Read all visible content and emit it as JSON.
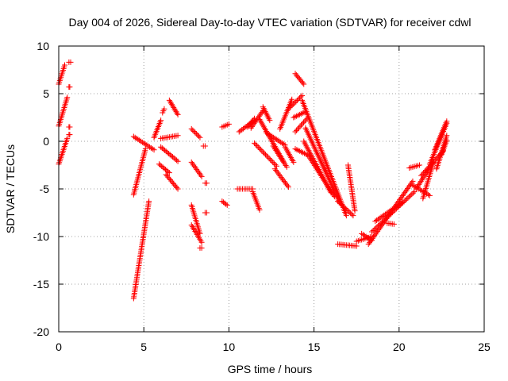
{
  "colors": {
    "series": "#ff0000",
    "grid": "#a0a0a0",
    "frame": "#000000"
  },
  "chart_data": {
    "type": "scatter",
    "title": "Day 004 of 2026, Sidereal Day-to-day VTEC variation (SDTVAR) for receiver cdwl",
    "xlabel": "GPS time / hours",
    "ylabel": "SDTVAR / TECUs",
    "xlim": [
      0,
      25
    ],
    "ylim": [
      -20,
      10
    ],
    "xticks": [
      0,
      5,
      10,
      15,
      20,
      25
    ],
    "yticks": [
      -20,
      -15,
      -10,
      -5,
      0,
      5,
      10
    ],
    "grid": true,
    "marker": "plus",
    "series": [
      {
        "name": "SDTVAR",
        "segments": [
          {
            "x0": 0.0,
            "x1": 0.35,
            "y0": 6.0,
            "y1": 8.0
          },
          {
            "x0": 0.6,
            "x1": 0.7,
            "y0": 8.3,
            "y1": 8.3
          },
          {
            "x0": 0.0,
            "x1": 0.5,
            "y0": 1.6,
            "y1": 4.6
          },
          {
            "x0": 0.0,
            "x1": 0.5,
            "y0": -2.4,
            "y1": 0.3
          },
          {
            "x0": 0.6,
            "x1": 0.65,
            "y0": 5.7,
            "y1": 5.7
          },
          {
            "x0": 0.6,
            "x1": 0.65,
            "y0": 1.5,
            "y1": 1.5
          },
          {
            "x0": 0.6,
            "x1": 0.65,
            "y0": 0.7,
            "y1": 0.7
          },
          {
            "x0": 4.4,
            "x1": 5.3,
            "y0": -16.5,
            "y1": -6.3
          },
          {
            "x0": 4.4,
            "x1": 5.1,
            "y0": -5.6,
            "y1": -0.8
          },
          {
            "x0": 4.4,
            "x1": 5.6,
            "y0": 0.5,
            "y1": -0.9
          },
          {
            "x0": 5.6,
            "x1": 6.0,
            "y0": 0.4,
            "y1": 2.2
          },
          {
            "x0": 6.1,
            "x1": 6.2,
            "y0": 3.0,
            "y1": 3.4
          },
          {
            "x0": 5.9,
            "x1": 6.5,
            "y0": -2.4,
            "y1": -3.3
          },
          {
            "x0": 6.3,
            "x1": 7.0,
            "y0": -3.5,
            "y1": -5.0
          },
          {
            "x0": 6.0,
            "x1": 7.0,
            "y0": -0.6,
            "y1": -2.1
          },
          {
            "x0": 6.5,
            "x1": 7.0,
            "y0": 4.3,
            "y1": 2.8
          },
          {
            "x0": 6.0,
            "x1": 7.0,
            "y0": 0.3,
            "y1": 0.6
          },
          {
            "x0": 7.8,
            "x1": 8.3,
            "y0": 1.3,
            "y1": 0.4
          },
          {
            "x0": 7.8,
            "x1": 8.4,
            "y0": -2.2,
            "y1": -3.7
          },
          {
            "x0": 8.6,
            "x1": 8.7,
            "y0": -4.4,
            "y1": -4.4
          },
          {
            "x0": 8.5,
            "x1": 8.6,
            "y0": -0.5,
            "y1": -0.5
          },
          {
            "x0": 7.8,
            "x1": 8.3,
            "y0": -6.7,
            "y1": -9.7
          },
          {
            "x0": 7.8,
            "x1": 8.4,
            "y0": -8.8,
            "y1": -10.6
          },
          {
            "x0": 8.3,
            "x1": 8.4,
            "y0": -11.2,
            "y1": -11.2
          },
          {
            "x0": 8.6,
            "x1": 8.7,
            "y0": -7.5,
            "y1": -7.5
          },
          {
            "x0": 9.6,
            "x1": 10.0,
            "y0": 1.5,
            "y1": 1.8
          },
          {
            "x0": 9.6,
            "x1": 9.9,
            "y0": -6.3,
            "y1": -6.7
          },
          {
            "x0": 10.6,
            "x1": 11.5,
            "y0": 1.0,
            "y1": 2.2
          },
          {
            "x0": 10.5,
            "x1": 11.4,
            "y0": -5.0,
            "y1": -5.0
          },
          {
            "x0": 11.4,
            "x1": 11.8,
            "y0": -5.3,
            "y1": -7.2
          },
          {
            "x0": 11.3,
            "x1": 12.0,
            "y0": 1.4,
            "y1": 3.2
          },
          {
            "x0": 12.0,
            "x1": 12.4,
            "y0": 3.6,
            "y1": 2.2
          },
          {
            "x0": 11.1,
            "x1": 11.5,
            "y0": 1.5,
            "y1": 2.4
          },
          {
            "x0": 11.5,
            "x1": 12.8,
            "y0": -0.2,
            "y1": -2.6
          },
          {
            "x0": 11.8,
            "x1": 13.2,
            "y0": 2.3,
            "y1": -2.1
          },
          {
            "x0": 12.2,
            "x1": 13.3,
            "y0": 0.9,
            "y1": -0.4
          },
          {
            "x0": 12.6,
            "x1": 13.4,
            "y0": -0.5,
            "y1": -2.7
          },
          {
            "x0": 12.7,
            "x1": 13.5,
            "y0": -2.9,
            "y1": -4.8
          },
          {
            "x0": 13.0,
            "x1": 13.7,
            "y0": 1.3,
            "y1": 4.4
          },
          {
            "x0": 13.3,
            "x1": 13.8,
            "y0": -0.6,
            "y1": -2.2
          },
          {
            "x0": 13.5,
            "x1": 14.3,
            "y0": 3.4,
            "y1": 4.8
          },
          {
            "x0": 13.8,
            "x1": 14.5,
            "y0": 2.5,
            "y1": 3.1
          },
          {
            "x0": 13.9,
            "x1": 14.6,
            "y0": 1.0,
            "y1": 2.4
          },
          {
            "x0": 13.9,
            "x1": 14.7,
            "y0": -0.8,
            "y1": -1.5
          },
          {
            "x0": 13.9,
            "x1": 14.4,
            "y0": 7.1,
            "y1": 6.0
          },
          {
            "x0": 14.3,
            "x1": 16.9,
            "y0": 4.3,
            "y1": -7.8
          },
          {
            "x0": 14.5,
            "x1": 16.5,
            "y0": 1.4,
            "y1": -6.4
          },
          {
            "x0": 14.4,
            "x1": 16.0,
            "y0": 0.0,
            "y1": -5.4
          },
          {
            "x0": 14.7,
            "x1": 16.2,
            "y0": -1.6,
            "y1": -5.8
          },
          {
            "x0": 16.4,
            "x1": 17.3,
            "y0": -6.3,
            "y1": -7.8
          },
          {
            "x0": 17.0,
            "x1": 17.4,
            "y0": -2.5,
            "y1": -7.3
          },
          {
            "x0": 16.4,
            "x1": 17.5,
            "y0": -10.8,
            "y1": -11.0
          },
          {
            "x0": 17.5,
            "x1": 18.4,
            "y0": -10.5,
            "y1": -10.0
          },
          {
            "x0": 17.8,
            "x1": 18.4,
            "y0": -9.7,
            "y1": -10.4
          },
          {
            "x0": 18.2,
            "x1": 20.8,
            "y0": -10.8,
            "y1": -4.2
          },
          {
            "x0": 18.4,
            "x1": 20.9,
            "y0": -9.5,
            "y1": -5.3
          },
          {
            "x0": 18.6,
            "x1": 20.2,
            "y0": -8.4,
            "y1": -6.4
          },
          {
            "x0": 19.3,
            "x1": 19.7,
            "y0": -8.6,
            "y1": -8.7
          },
          {
            "x0": 20.8,
            "x1": 21.8,
            "y0": -4.6,
            "y1": -5.7
          },
          {
            "x0": 20.6,
            "x1": 21.2,
            "y0": -2.8,
            "y1": -2.5
          },
          {
            "x0": 21.4,
            "x1": 22.0,
            "y0": -6.0,
            "y1": -2.3
          },
          {
            "x0": 21.0,
            "x1": 22.0,
            "y0": -5.0,
            "y1": -2.2
          },
          {
            "x0": 21.3,
            "x1": 22.6,
            "y0": -3.6,
            "y1": -1.0
          },
          {
            "x0": 21.8,
            "x1": 22.8,
            "y0": -2.4,
            "y1": 1.9
          },
          {
            "x0": 22.2,
            "x1": 22.8,
            "y0": -2.9,
            "y1": 0.6
          },
          {
            "x0": 22.1,
            "x1": 22.8,
            "y0": -0.9,
            "y1": 2.1
          },
          {
            "x0": 22.5,
            "x1": 22.8,
            "y0": -1.4,
            "y1": 0.1
          }
        ]
      }
    ]
  }
}
